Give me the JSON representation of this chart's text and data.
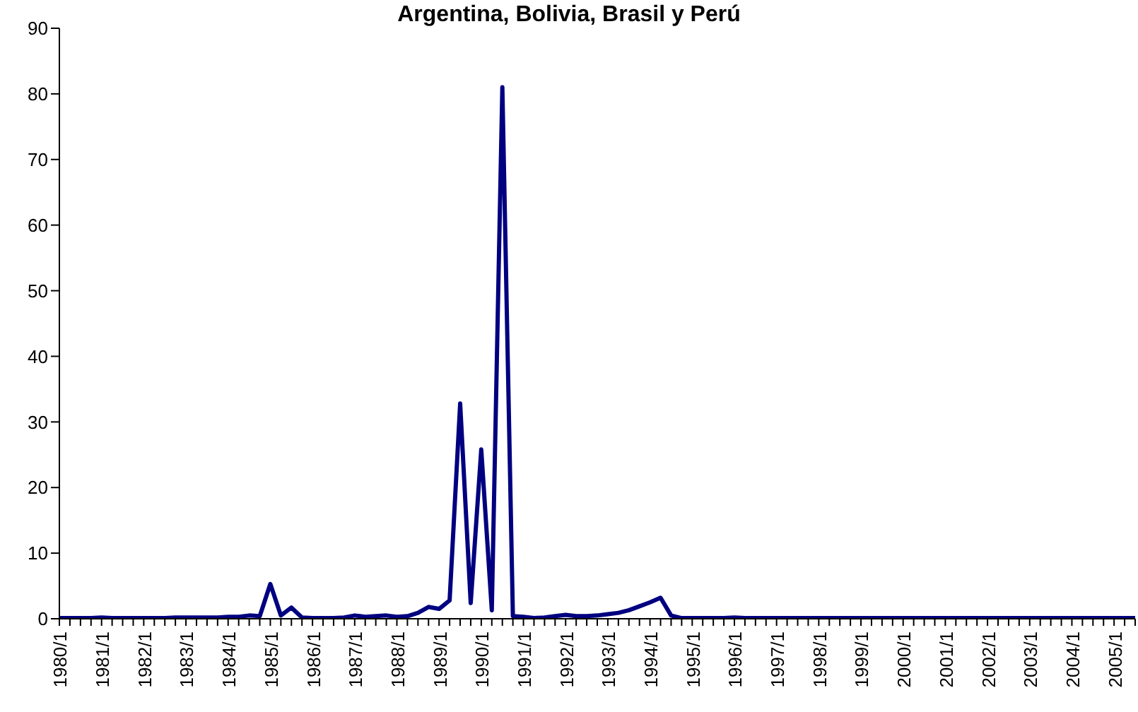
{
  "chart_data": {
    "type": "line",
    "title": "Argentina, Bolivia, Brasil y Perú",
    "categories": [
      "1980/1",
      null,
      null,
      null,
      "1981/1",
      null,
      null,
      null,
      "1982/1",
      null,
      null,
      null,
      "1983/1",
      null,
      null,
      null,
      "1984/1",
      null,
      null,
      null,
      "1985/1",
      null,
      null,
      null,
      "1986/1",
      null,
      null,
      null,
      "1987/1",
      null,
      null,
      null,
      "1988/1",
      null,
      null,
      null,
      "1989/1",
      null,
      null,
      null,
      "1990/1",
      null,
      null,
      null,
      "1991/1",
      null,
      null,
      null,
      "1992/1",
      null,
      null,
      null,
      "1993/1",
      null,
      null,
      null,
      "1994/1",
      null,
      null,
      null,
      "1995/1",
      null,
      null,
      null,
      "1996/1",
      null,
      null,
      null,
      "1997/1",
      null,
      null,
      null,
      "1998/1",
      null,
      null,
      null,
      "1999/1",
      null,
      null,
      null,
      "2000/1",
      null,
      null,
      null,
      "2001/1",
      null,
      null,
      null,
      "2002/1",
      null,
      null,
      null,
      "2003/1",
      null,
      null,
      null,
      "2004/1",
      null,
      null,
      null,
      "2005/1",
      null,
      null
    ],
    "series": [
      {
        "color": "#000080",
        "values": [
          0.1,
          0.1,
          0.1,
          0.1,
          0.2,
          0.1,
          0.1,
          0.1,
          0.1,
          0.1,
          0.1,
          0.2,
          0.2,
          0.2,
          0.2,
          0.2,
          0.3,
          0.3,
          0.5,
          0.4,
          5.3,
          0.5,
          1.7,
          0.2,
          0.1,
          0.1,
          0.1,
          0.2,
          0.5,
          0.3,
          0.4,
          0.5,
          0.3,
          0.4,
          0.9,
          1.8,
          1.5,
          2.8,
          32.8,
          2.4,
          25.8,
          1.3,
          81,
          0.4,
          0.3,
          0.1,
          0.2,
          0.4,
          0.6,
          0.4,
          0.4,
          0.5,
          0.7,
          0.9,
          1.3,
          1.9,
          2.5,
          3.2,
          0.5,
          0.1,
          0.1,
          0.1,
          0.1,
          0.1,
          0.2,
          0.1,
          0.1,
          0.1,
          0.1,
          0.1,
          0.1,
          0.1,
          0.1,
          0.1,
          0.1,
          0.1,
          0.1,
          0.1,
          0.1,
          0.1,
          0.1,
          0.1,
          0.1,
          0.1,
          0.1,
          0.1,
          0.1,
          0.1,
          0.1,
          0.1,
          0.1,
          0.1,
          0.1,
          0.1,
          0.1,
          0.1,
          0.1,
          0.1,
          0.1,
          0.1,
          0.1,
          0.1,
          0.1
        ]
      }
    ],
    "ylim": [
      0,
      90
    ],
    "yticks": [
      0,
      10,
      20,
      30,
      40,
      50,
      60,
      70,
      80,
      90
    ],
    "grid": false,
    "legend": false,
    "marker": "none",
    "line_style": "solid"
  }
}
